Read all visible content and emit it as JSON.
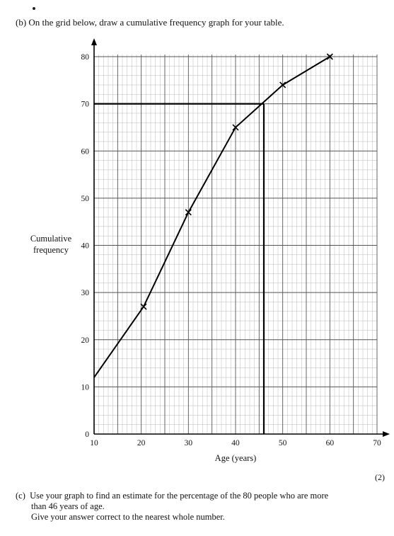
{
  "part_b": {
    "text": "(b) On the grid below, draw a cumulative frequency graph for your table."
  },
  "marks": "(2)",
  "part_c": {
    "label": "(c)",
    "line1": "Use your graph to find an estimate for the percentage of the 80 people who are more",
    "line2": "than 46 years of age.",
    "line3": "Give your answer correct to the nearest whole number."
  },
  "chart_data": {
    "type": "line",
    "xlabel": "Age (years)",
    "ylabel_line1": "Cumulative",
    "ylabel_line2": "frequency",
    "xlim": [
      10,
      70
    ],
    "ylim": [
      0,
      80
    ],
    "x_ticks": [
      10,
      20,
      30,
      40,
      50,
      60,
      70
    ],
    "y_ticks": [
      0,
      10,
      20,
      30,
      40,
      50,
      60,
      70,
      80
    ],
    "grid": true,
    "series": [
      {
        "x": [
          10,
          20.5,
          30,
          40,
          50,
          60
        ],
        "y": [
          12,
          27,
          47,
          65,
          74,
          80
        ]
      }
    ],
    "points_marked": [
      [
        20.5,
        27
      ],
      [
        30,
        47
      ],
      [
        40,
        65
      ],
      [
        50,
        74
      ],
      [
        60,
        80
      ]
    ],
    "reading_lines": {
      "y": 70,
      "x": 46
    }
  }
}
